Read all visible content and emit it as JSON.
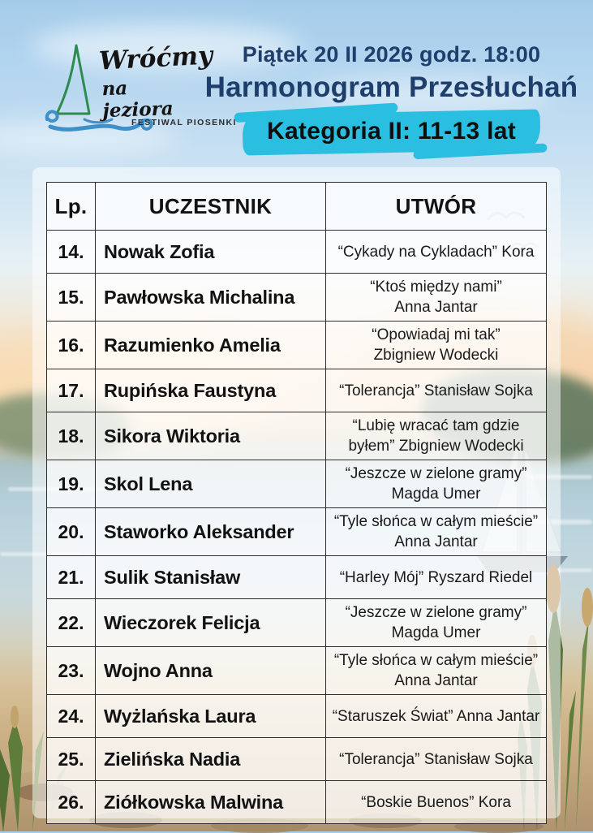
{
  "logo": {
    "script_line1": "Wróćmy",
    "script_line2": "na jeziora",
    "subtitle": "FESTIWAL PIOSENKI"
  },
  "header": {
    "date_line": "Piątek 20 II 2026 godz. 18:00",
    "title": "Harmonogram Przesłuchań",
    "category": "Kategoria II: 11-13 lat"
  },
  "colors": {
    "accent_cyan": "#2abfe0",
    "navy": "#1e3e6b"
  },
  "table": {
    "columns": [
      "Lp.",
      "UCZESTNIK",
      "UTWÓR"
    ],
    "rows": [
      {
        "num": "14.",
        "name": "Nowak Zofia",
        "song": [
          "“Cykady na Cykladach” Kora"
        ]
      },
      {
        "num": "15.",
        "name": "Pawłowska Michalina",
        "song": [
          "“Ktoś między nami”",
          "Anna Jantar"
        ]
      },
      {
        "num": "16.",
        "name": "Razumienko Amelia",
        "song": [
          "“Opowiadaj mi tak”",
          "Zbigniew Wodecki"
        ]
      },
      {
        "num": "17.",
        "name": "Rupińska Faustyna",
        "song": [
          "“Tolerancja” Stanisław Sojka"
        ]
      },
      {
        "num": "18.",
        "name": "Sikora Wiktoria",
        "song": [
          "“Lubię wracać tam gdzie",
          "byłem” Zbigniew Wodecki"
        ]
      },
      {
        "num": "19.",
        "name": "Skol Lena",
        "song": [
          "“Jeszcze w zielone gramy”",
          "Magda Umer"
        ]
      },
      {
        "num": "20.",
        "name": "Staworko Aleksander",
        "song": [
          "“Tyle słońca w całym mieście”",
          "Anna Jantar"
        ]
      },
      {
        "num": "21.",
        "name": "Sulik Stanisław",
        "song": [
          "“Harley Mój” Ryszard Riedel"
        ]
      },
      {
        "num": "22.",
        "name": "Wieczorek Felicja",
        "song": [
          "“Jeszcze w zielone gramy”",
          "Magda Umer"
        ]
      },
      {
        "num": "23.",
        "name": "Wojno Anna",
        "song": [
          "“Tyle słońca w całym mieście”",
          "Anna Jantar"
        ]
      },
      {
        "num": "24.",
        "name": "Wyżlańska Laura",
        "song": [
          "“Staruszek Świat” Anna Jantar"
        ]
      },
      {
        "num": "25.",
        "name": "Zielińska Nadia",
        "song": [
          "“Tolerancja” Stanisław Sojka"
        ]
      },
      {
        "num": "26.",
        "name": "Ziółkowska Malwina",
        "song": [
          "“Boskie Buenos” Kora"
        ]
      }
    ]
  }
}
